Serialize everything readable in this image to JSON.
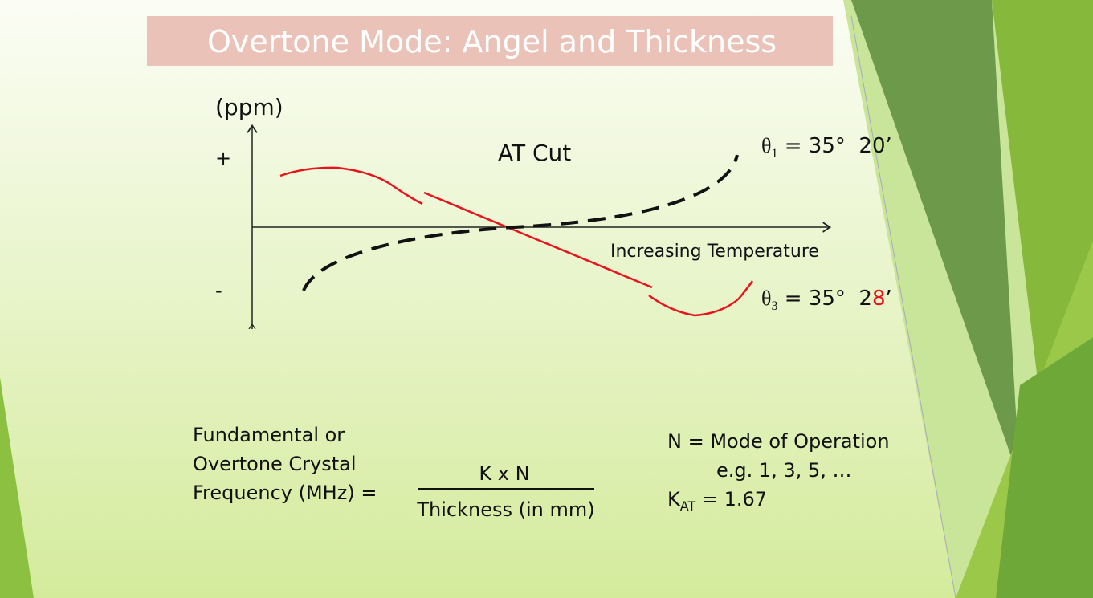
{
  "header": {
    "title": "Overtone Mode: Angel and Thickness"
  },
  "diagram": {
    "y_axis_label": "(ppm)",
    "plus": "+",
    "minus": "-",
    "cut": "AT Cut",
    "x_axis_label": "Increasing Temperature",
    "theta1": {
      "symbol": "θ",
      "sub": "1",
      "rest": " = 35°  20’"
    },
    "theta3": {
      "symbol": "θ",
      "sub": "3",
      "rest": " = 35°  2",
      "highlight": "8",
      "end": "’"
    }
  },
  "formula": {
    "left": [
      "Fundamental or",
      "Overtone Crystal",
      "Frequency (MHz) ="
    ],
    "numerator": "K x N",
    "denominator": "Thickness (in mm)",
    "notes": {
      "n": "N = Mode of Operation",
      "example": "e.g. 1, 3, 5, …",
      "k": "K",
      "k_sub": "AT",
      "k_value": " = 1.67"
    }
  }
}
